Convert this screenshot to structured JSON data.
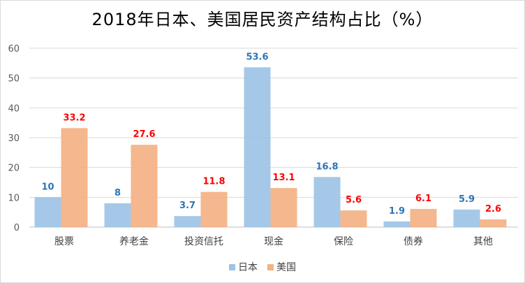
{
  "chart_data": {
    "type": "bar",
    "title": "2018年日本、美国居民资产结构占比（%）",
    "categories": [
      "股票",
      "养老金",
      "投资信托",
      "现金",
      "保险",
      "债券",
      "其他"
    ],
    "series": [
      {
        "name": "日本",
        "values": [
          10,
          8,
          3.7,
          53.6,
          16.8,
          1.9,
          5.9
        ],
        "color": "#9dc3e6",
        "label_color": "#2e75b6"
      },
      {
        "name": "美国",
        "values": [
          33.2,
          27.6,
          11.8,
          13.1,
          5.6,
          6.1,
          2.6
        ],
        "color": "#f4b183",
        "label_color": "#ff0000"
      }
    ],
    "ylim": [
      0,
      60
    ],
    "yticks": [
      0,
      10,
      20,
      30,
      40,
      50,
      60
    ],
    "grid": true,
    "legend_position": "bottom"
  }
}
